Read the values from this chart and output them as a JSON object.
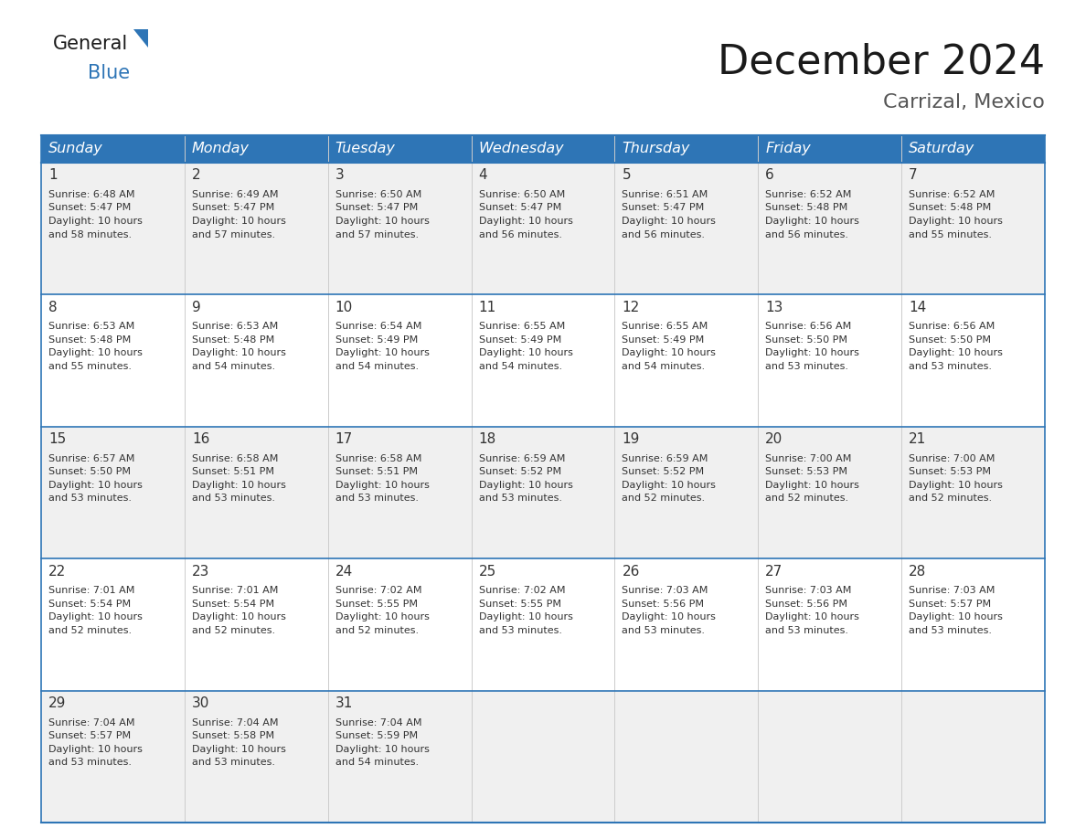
{
  "title": "December 2024",
  "subtitle": "Carrizal, Mexico",
  "header_color": "#2E75B6",
  "header_text_color": "#FFFFFF",
  "cell_bg_white": "#FFFFFF",
  "cell_bg_gray": "#F0F0F0",
  "border_color": "#2E75B6",
  "text_color": "#333333",
  "day_names": [
    "Sunday",
    "Monday",
    "Tuesday",
    "Wednesday",
    "Thursday",
    "Friday",
    "Saturday"
  ],
  "weeks": [
    [
      {
        "day": 1,
        "sunrise": "6:48 AM",
        "sunset": "5:47 PM",
        "daylight": "10 hours and 58 minutes."
      },
      {
        "day": 2,
        "sunrise": "6:49 AM",
        "sunset": "5:47 PM",
        "daylight": "10 hours and 57 minutes."
      },
      {
        "day": 3,
        "sunrise": "6:50 AM",
        "sunset": "5:47 PM",
        "daylight": "10 hours and 57 minutes."
      },
      {
        "day": 4,
        "sunrise": "6:50 AM",
        "sunset": "5:47 PM",
        "daylight": "10 hours and 56 minutes."
      },
      {
        "day": 5,
        "sunrise": "6:51 AM",
        "sunset": "5:47 PM",
        "daylight": "10 hours and 56 minutes."
      },
      {
        "day": 6,
        "sunrise": "6:52 AM",
        "sunset": "5:48 PM",
        "daylight": "10 hours and 56 minutes."
      },
      {
        "day": 7,
        "sunrise": "6:52 AM",
        "sunset": "5:48 PM",
        "daylight": "10 hours and 55 minutes."
      }
    ],
    [
      {
        "day": 8,
        "sunrise": "6:53 AM",
        "sunset": "5:48 PM",
        "daylight": "10 hours and 55 minutes."
      },
      {
        "day": 9,
        "sunrise": "6:53 AM",
        "sunset": "5:48 PM",
        "daylight": "10 hours and 54 minutes."
      },
      {
        "day": 10,
        "sunrise": "6:54 AM",
        "sunset": "5:49 PM",
        "daylight": "10 hours and 54 minutes."
      },
      {
        "day": 11,
        "sunrise": "6:55 AM",
        "sunset": "5:49 PM",
        "daylight": "10 hours and 54 minutes."
      },
      {
        "day": 12,
        "sunrise": "6:55 AM",
        "sunset": "5:49 PM",
        "daylight": "10 hours and 54 minutes."
      },
      {
        "day": 13,
        "sunrise": "6:56 AM",
        "sunset": "5:50 PM",
        "daylight": "10 hours and 53 minutes."
      },
      {
        "day": 14,
        "sunrise": "6:56 AM",
        "sunset": "5:50 PM",
        "daylight": "10 hours and 53 minutes."
      }
    ],
    [
      {
        "day": 15,
        "sunrise": "6:57 AM",
        "sunset": "5:50 PM",
        "daylight": "10 hours and 53 minutes."
      },
      {
        "day": 16,
        "sunrise": "6:58 AM",
        "sunset": "5:51 PM",
        "daylight": "10 hours and 53 minutes."
      },
      {
        "day": 17,
        "sunrise": "6:58 AM",
        "sunset": "5:51 PM",
        "daylight": "10 hours and 53 minutes."
      },
      {
        "day": 18,
        "sunrise": "6:59 AM",
        "sunset": "5:52 PM",
        "daylight": "10 hours and 53 minutes."
      },
      {
        "day": 19,
        "sunrise": "6:59 AM",
        "sunset": "5:52 PM",
        "daylight": "10 hours and 52 minutes."
      },
      {
        "day": 20,
        "sunrise": "7:00 AM",
        "sunset": "5:53 PM",
        "daylight": "10 hours and 52 minutes."
      },
      {
        "day": 21,
        "sunrise": "7:00 AM",
        "sunset": "5:53 PM",
        "daylight": "10 hours and 52 minutes."
      }
    ],
    [
      {
        "day": 22,
        "sunrise": "7:01 AM",
        "sunset": "5:54 PM",
        "daylight": "10 hours and 52 minutes."
      },
      {
        "day": 23,
        "sunrise": "7:01 AM",
        "sunset": "5:54 PM",
        "daylight": "10 hours and 52 minutes."
      },
      {
        "day": 24,
        "sunrise": "7:02 AM",
        "sunset": "5:55 PM",
        "daylight": "10 hours and 52 minutes."
      },
      {
        "day": 25,
        "sunrise": "7:02 AM",
        "sunset": "5:55 PM",
        "daylight": "10 hours and 53 minutes."
      },
      {
        "day": 26,
        "sunrise": "7:03 AM",
        "sunset": "5:56 PM",
        "daylight": "10 hours and 53 minutes."
      },
      {
        "day": 27,
        "sunrise": "7:03 AM",
        "sunset": "5:56 PM",
        "daylight": "10 hours and 53 minutes."
      },
      {
        "day": 28,
        "sunrise": "7:03 AM",
        "sunset": "5:57 PM",
        "daylight": "10 hours and 53 minutes."
      }
    ],
    [
      {
        "day": 29,
        "sunrise": "7:04 AM",
        "sunset": "5:57 PM",
        "daylight": "10 hours and 53 minutes."
      },
      {
        "day": 30,
        "sunrise": "7:04 AM",
        "sunset": "5:58 PM",
        "daylight": "10 hours and 53 minutes."
      },
      {
        "day": 31,
        "sunrise": "7:04 AM",
        "sunset": "5:59 PM",
        "daylight": "10 hours and 54 minutes."
      },
      null,
      null,
      null,
      null
    ]
  ],
  "title_fontsize": 32,
  "subtitle_fontsize": 16,
  "header_fontsize": 11.5,
  "day_num_fontsize": 11,
  "cell_text_fontsize": 8
}
